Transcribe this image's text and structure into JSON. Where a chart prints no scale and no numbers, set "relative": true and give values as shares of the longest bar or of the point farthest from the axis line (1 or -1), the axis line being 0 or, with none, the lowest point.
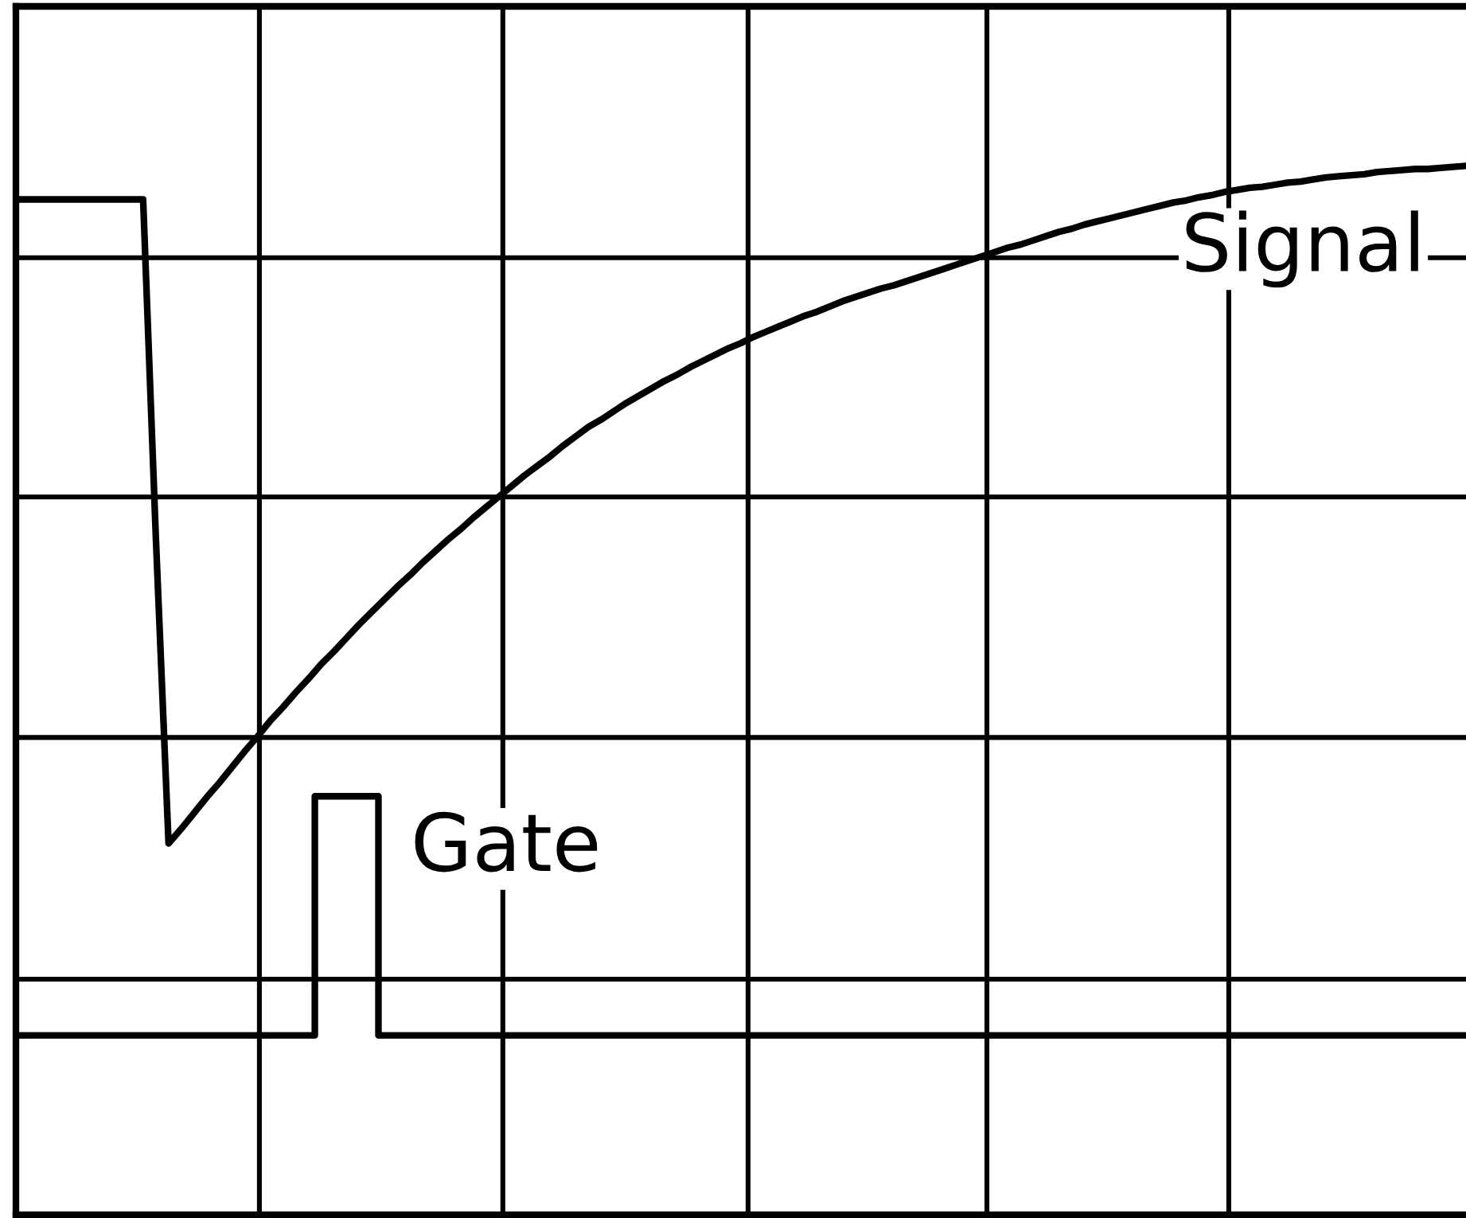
{
  "chart_data": {
    "type": "line",
    "relative": true,
    "grid": true,
    "categories": [
      null,
      null,
      null,
      null,
      null,
      null,
      null,
      null,
      null,
      null,
      null,
      null,
      null,
      null,
      null,
      null,
      null,
      null,
      null,
      null,
      null,
      null,
      null,
      null,
      null,
      null,
      null,
      null,
      null,
      null,
      null,
      null,
      null,
      null,
      null,
      null,
      null,
      null,
      null,
      null,
      null,
      null,
      null,
      null,
      null,
      null,
      null,
      null,
      null,
      null,
      null,
      null,
      null,
      null,
      null,
      null,
      null,
      null,
      null,
      null,
      null,
      null,
      null,
      null,
      null,
      null,
      null,
      null,
      null,
      null,
      null,
      null,
      null,
      null,
      null,
      null,
      null,
      null,
      null,
      null,
      null,
      null,
      null,
      null,
      null,
      null,
      null,
      null,
      null,
      null,
      null,
      null,
      null,
      null,
      null,
      null,
      null,
      null,
      null,
      null,
      null,
      null,
      null,
      null,
      null,
      null,
      null,
      null,
      null,
      null,
      null,
      null,
      null,
      null,
      null
    ],
    "series": [
      {
        "name": "Signal",
        "color": "#000000",
        "values": [
          0.968,
          0.968,
          0.968,
          0.968,
          0.968,
          0.968,
          0.968,
          0.968,
          0.968,
          0.968,
          0.968,
          0.646,
          0.354,
          0.368,
          0.383,
          0.398,
          0.412,
          0.427,
          0.442,
          0.456,
          0.471,
          0.484,
          0.498,
          0.511,
          0.525,
          0.537,
          0.55,
          0.563,
          0.575,
          0.587,
          0.599,
          0.61,
          0.622,
          0.633,
          0.644,
          0.654,
          0.665,
          0.675,
          0.685,
          0.695,
          0.705,
          0.714,
          0.723,
          0.733,
          0.742,
          0.751,
          0.758,
          0.766,
          0.774,
          0.781,
          0.788,
          0.795,
          0.801,
          0.808,
          0.814,
          0.82,
          0.826,
          0.831,
          0.837,
          0.842,
          0.847,
          0.852,
          0.857,
          0.861,
          0.866,
          0.871,
          0.875,
          0.879,
          0.883,
          0.886,
          0.89,
          0.894,
          0.898,
          0.902,
          0.906,
          0.91,
          0.914,
          0.918,
          0.922,
          0.925,
          0.929,
          0.933,
          0.937,
          0.94,
          0.944,
          0.947,
          0.95,
          0.953,
          0.956,
          0.959,
          0.962,
          0.965,
          0.967,
          0.97,
          0.972,
          0.975,
          0.977,
          0.979,
          0.98,
          0.982,
          0.984,
          0.985,
          0.987,
          0.989,
          0.99,
          0.991,
          0.992,
          0.994,
          0.995,
          0.996,
          0.997,
          0.997,
          0.998,
          0.999,
          1.0
        ]
      },
      {
        "name": "Gate",
        "type": "step",
        "color": "#000000",
        "values": [
          0.171,
          0.171,
          0.171,
          0.171,
          0.171,
          0.171,
          0.171,
          0.171,
          0.171,
          0.171,
          0.171,
          0.171,
          0.171,
          0.171,
          0.171,
          0.171,
          0.171,
          0.171,
          0.171,
          0.171,
          0.171,
          0.171,
          0.171,
          0.171,
          0.399,
          0.399,
          0.399,
          0.399,
          0.399,
          0.171,
          0.171,
          0.171,
          0.171,
          0.171,
          0.171,
          0.171,
          0.171,
          0.171,
          0.171,
          0.171,
          0.171,
          0.171,
          0.171,
          0.171,
          0.171,
          0.171,
          0.171,
          0.171,
          0.171,
          0.171,
          0.171,
          0.171,
          0.171,
          0.171,
          0.171,
          0.171,
          0.171,
          0.171,
          0.171,
          0.171,
          0.171,
          0.171,
          0.171,
          0.171,
          0.171,
          0.171,
          0.171,
          0.171,
          0.171,
          0.171,
          0.171,
          0.171,
          0.171,
          0.171,
          0.171,
          0.171,
          0.171,
          0.171,
          0.171,
          0.171,
          0.171,
          0.171,
          0.171,
          0.171,
          0.171,
          0.171,
          0.171,
          0.171,
          0.171,
          0.171,
          0.171,
          0.171,
          0.171,
          0.171,
          0.171,
          0.171,
          0.171,
          0.171,
          0.171,
          0.171,
          0.171,
          0.171,
          0.171,
          0.171,
          0.171,
          0.171,
          0.171,
          0.171,
          0.171,
          0.171,
          0.171,
          0.171,
          0.171,
          0.171,
          0.171
        ]
      }
    ]
  }
}
